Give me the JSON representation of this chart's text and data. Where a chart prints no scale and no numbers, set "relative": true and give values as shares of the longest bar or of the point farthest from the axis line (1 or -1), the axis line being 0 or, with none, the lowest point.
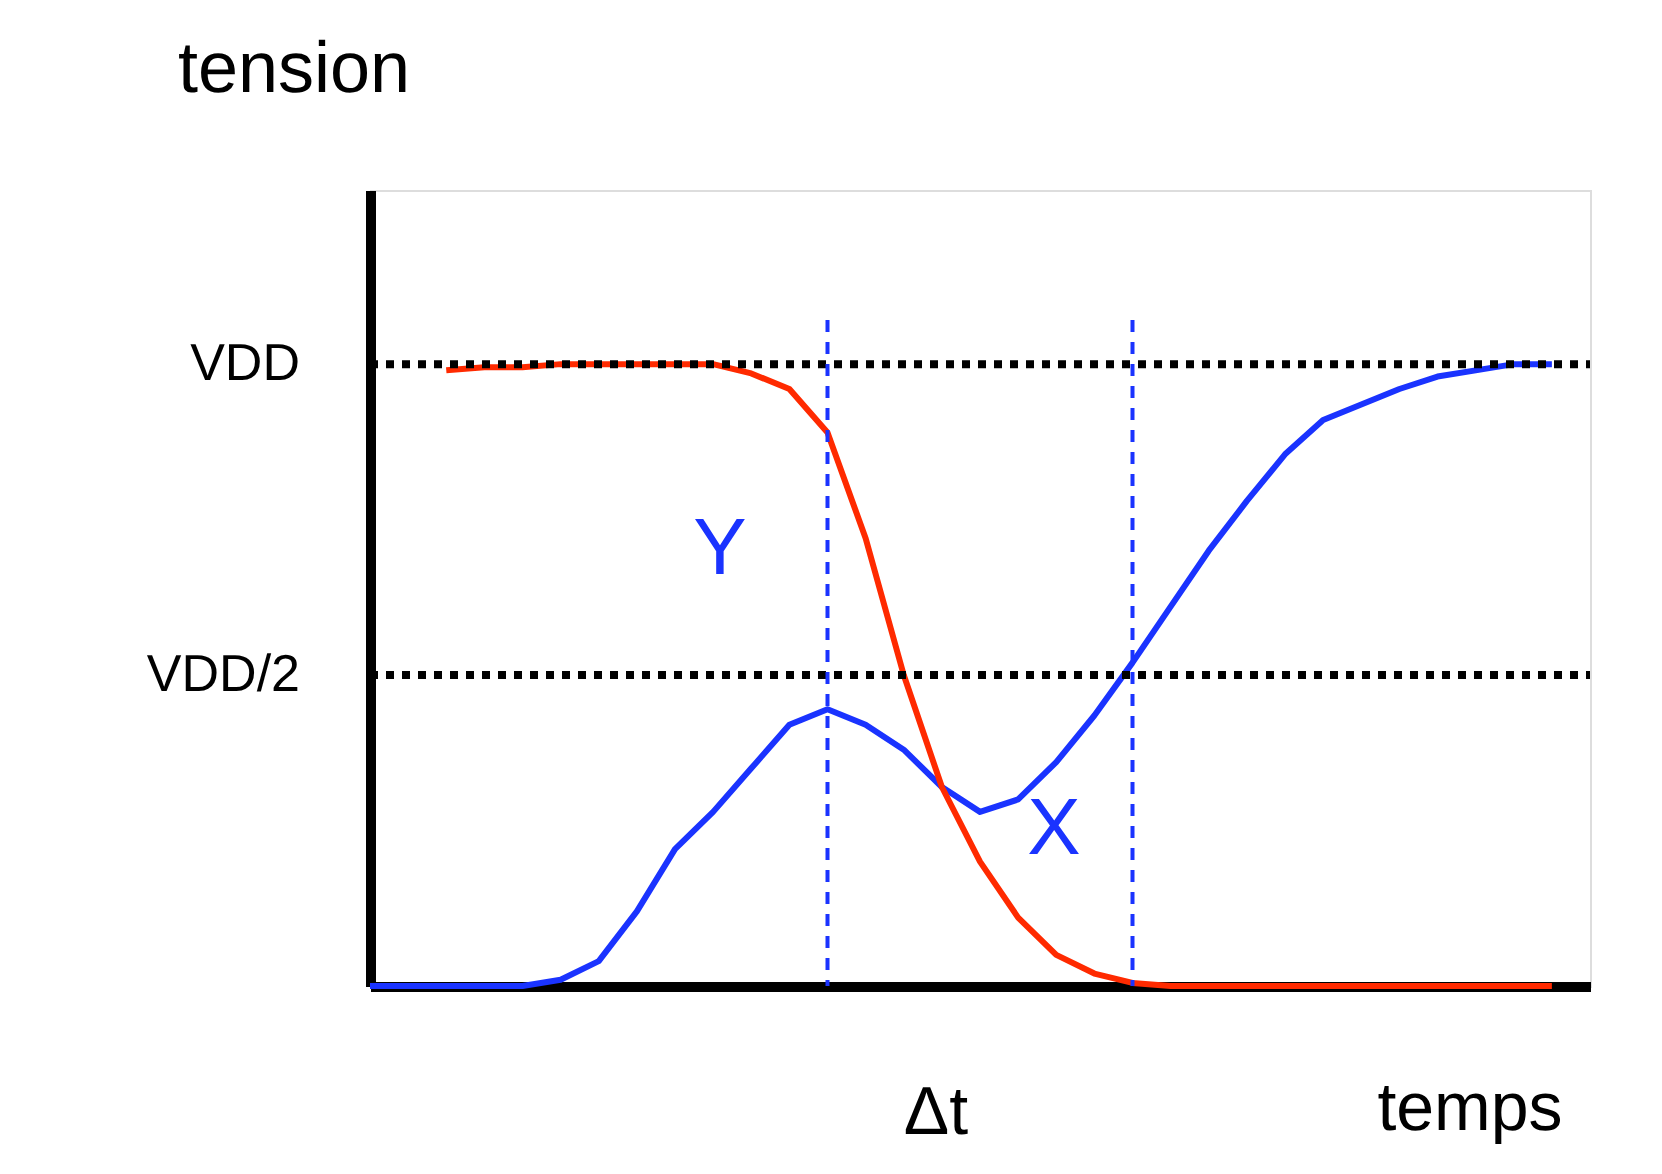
{
  "chart_data": {
    "type": "line",
    "ylabel": "tension",
    "xlabel": "temps",
    "relative": true,
    "categories": [
      null,
      null,
      null,
      null,
      null,
      null,
      null,
      null,
      null,
      null,
      null,
      null,
      null,
      null,
      null,
      null,
      null,
      null,
      null,
      null,
      null,
      null,
      null,
      null,
      null,
      null,
      null,
      null,
      null,
      null,
      null,
      null
    ],
    "series": [
      {
        "color": "#1a33ff",
        "values": [
          0,
          0,
          0,
          0,
          0,
          0.01,
          0.04,
          0.12,
          0.22,
          0.28,
          0.35,
          0.42,
          0.445,
          0.42,
          0.38,
          0.32,
          0.28,
          0.3,
          0.36,
          0.435,
          0.52,
          0.61,
          0.7,
          0.78,
          0.855,
          0.91,
          0.935,
          0.96,
          0.98,
          0.99,
          1.0,
          1.0
        ]
      },
      {
        "color": "#ff2a00",
        "values": [
          null,
          null,
          0.99,
          0.995,
          0.995,
          1.0,
          1.0,
          1.0,
          1.0,
          1.0,
          0.985,
          0.96,
          0.89,
          0.72,
          0.5,
          0.32,
          0.2,
          0.11,
          0.05,
          0.02,
          0.005,
          0,
          0,
          0,
          0,
          0,
          0,
          0,
          0,
          0,
          0,
          0
        ]
      }
    ],
    "ref_lines": [
      {
        "axis": "y",
        "value": 1,
        "label": "VDD",
        "color": "#000000",
        "line_style": "dotted"
      },
      {
        "axis": "y",
        "value": 0.5,
        "label": "VDD/2",
        "color": "#000000",
        "line_style": "dotted"
      }
    ],
    "annotations": [
      "Y",
      "X",
      "Δt"
    ],
    "marker": "none",
    "line_style": "solid"
  }
}
